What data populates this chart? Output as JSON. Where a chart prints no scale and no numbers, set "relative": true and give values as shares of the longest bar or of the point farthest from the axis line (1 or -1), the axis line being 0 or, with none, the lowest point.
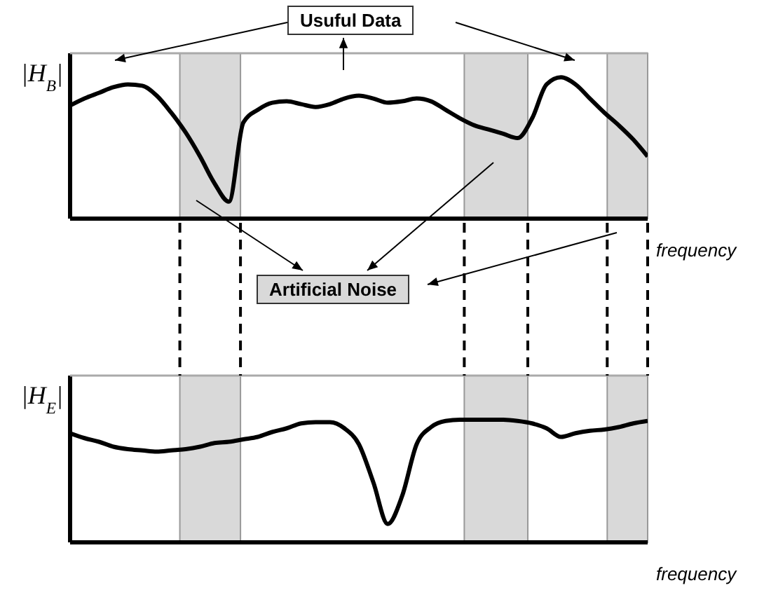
{
  "chart_data": [
    {
      "type": "line",
      "relative": true,
      "ylabel": "|H$_{B}$|",
      "xlabel": "frequency",
      "annotations": [
        "Usuful Data",
        "Artificial Noise"
      ],
      "categories": [
        null,
        null,
        null,
        null,
        null,
        null,
        null,
        null,
        null,
        null,
        null,
        null,
        null,
        null,
        null,
        null,
        null,
        null,
        null,
        null,
        null,
        null,
        null,
        null,
        null,
        null,
        null,
        null,
        null,
        null,
        null,
        null,
        null,
        null,
        null,
        null,
        null,
        null,
        null,
        null,
        null
      ],
      "series": [
        {
          "color": "#000000",
          "values": [
            0.8,
            0.85,
            0.89,
            0.93,
            0.95,
            0.94,
            0.87,
            0.75,
            0.61,
            0.44,
            0.25,
            0.12,
            0.68,
            0.77,
            0.82,
            0.83,
            0.81,
            0.79,
            0.81,
            0.85,
            0.87,
            0.85,
            0.82,
            0.83,
            0.85,
            0.83,
            0.77,
            0.71,
            0.66,
            0.63,
            0.6,
            0.57,
            0.71,
            0.95,
            1.0,
            0.95,
            0.85,
            0.75,
            0.66,
            0.56,
            0.44
          ]
        }
      ]
    },
    {
      "type": "line",
      "relative": true,
      "ylabel": "|H$_{E}$|",
      "xlabel": "frequency",
      "categories": [
        null,
        null,
        null,
        null,
        null,
        null,
        null,
        null,
        null,
        null,
        null,
        null,
        null,
        null,
        null,
        null,
        null,
        null,
        null,
        null,
        null,
        null,
        null,
        null,
        null,
        null,
        null,
        null,
        null,
        null,
        null,
        null,
        null,
        null,
        null,
        null,
        null,
        null,
        null,
        null,
        null
      ],
      "series": [
        {
          "color": "#000000",
          "values": [
            0.89,
            0.85,
            0.82,
            0.78,
            0.76,
            0.75,
            0.74,
            0.75,
            0.76,
            0.78,
            0.81,
            0.82,
            0.84,
            0.86,
            0.9,
            0.93,
            0.97,
            0.98,
            0.98,
            0.93,
            0.8,
            0.49,
            0.15,
            0.38,
            0.8,
            0.94,
            0.99,
            1.0,
            1.0,
            1.0,
            1.0,
            0.99,
            0.97,
            0.93,
            0.86,
            0.89,
            0.91,
            0.92,
            0.94,
            0.97,
            0.99
          ]
        }
      ]
    }
  ]
}
